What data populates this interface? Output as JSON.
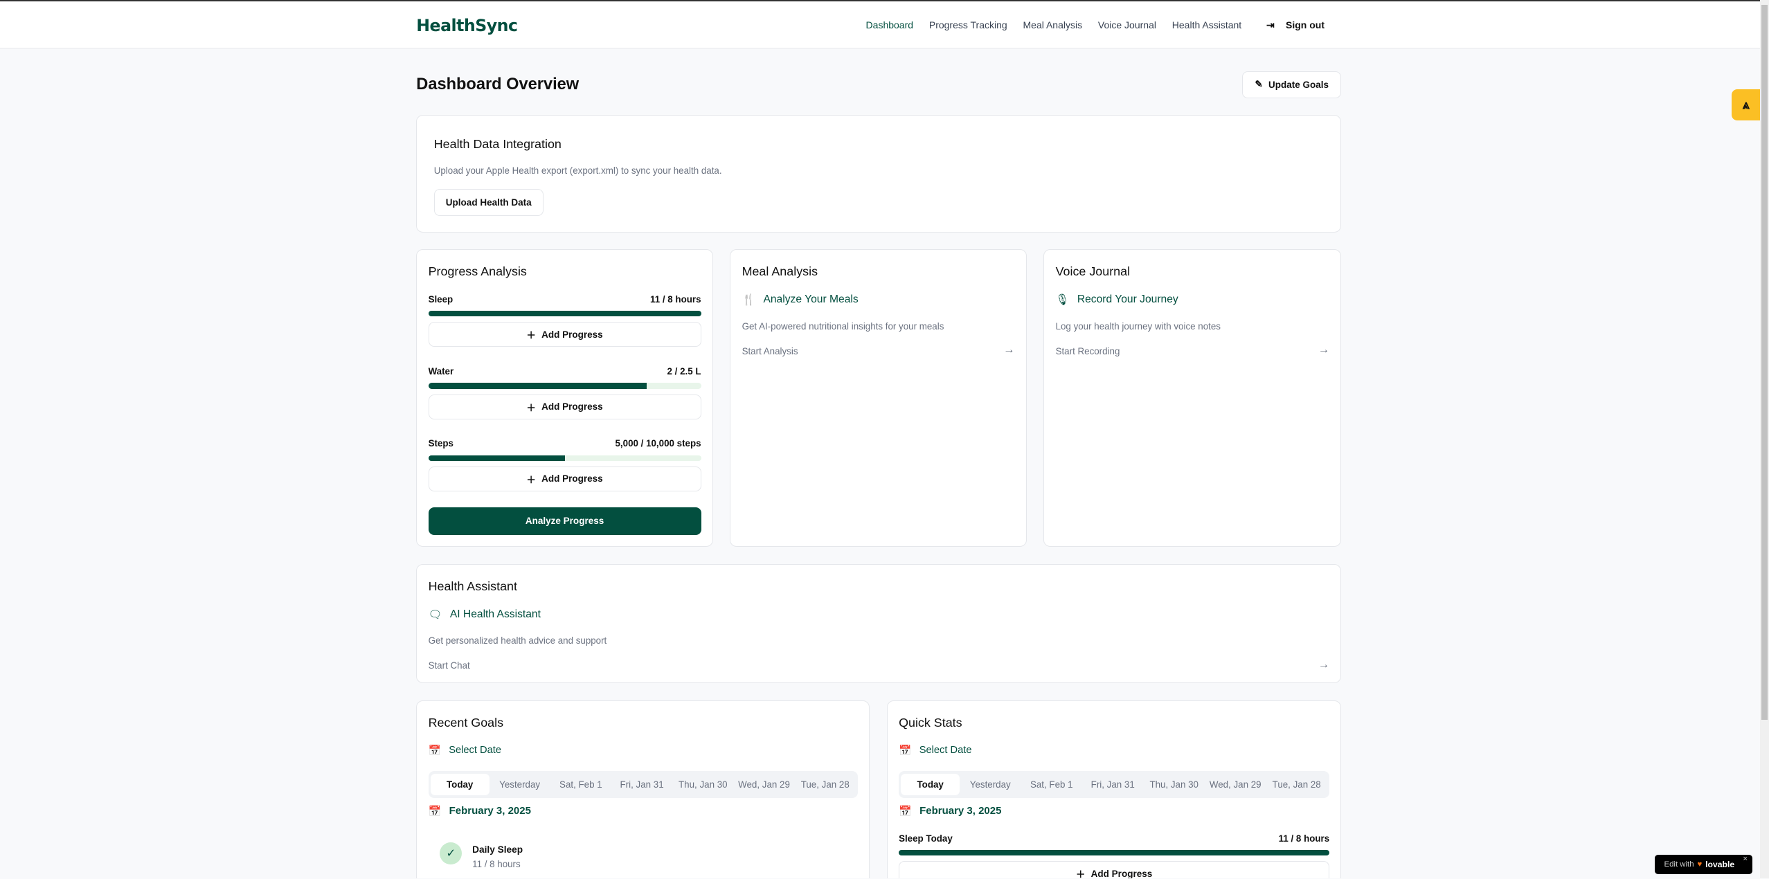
{
  "header": {
    "logo": "HealthSync",
    "nav": [
      "Dashboard",
      "Progress Tracking",
      "Meal Analysis",
      "Voice Journal",
      "Health Assistant"
    ],
    "active": "Dashboard",
    "signout": "Sign out"
  },
  "page": {
    "title": "Dashboard Overview",
    "update_goals": "Update Goals"
  },
  "integration": {
    "title": "Health Data Integration",
    "desc": "Upload your Apple Health export (export.xml) to sync your health data.",
    "button": "Upload Health Data"
  },
  "progress": {
    "title": "Progress Analysis",
    "items": [
      {
        "label": "Sleep",
        "value": "11 / 8 hours",
        "percent": 100
      },
      {
        "label": "Water",
        "value": "2 / 2.5 L",
        "percent": 80
      },
      {
        "label": "Steps",
        "value": "5,000 / 10,000 steps",
        "percent": 50
      }
    ],
    "add": "Add Progress",
    "analyze": "Analyze Progress"
  },
  "meal": {
    "title": "Meal Analysis",
    "sub": "Analyze Your Meals",
    "desc": "Get AI-powered nutritional insights for your meals",
    "action": "Start Analysis"
  },
  "voice": {
    "title": "Voice Journal",
    "sub": "Record Your Journey",
    "desc": "Log your health journey with voice notes",
    "action": "Start Recording"
  },
  "assistant": {
    "title": "Health Assistant",
    "sub": "AI Health Assistant",
    "desc": "Get personalized health advice and support",
    "action": "Start Chat"
  },
  "dates": [
    "Today",
    "Yesterday",
    "Sat, Feb 1",
    "Fri, Jan 31",
    "Thu, Jan 30",
    "Wed, Jan 29",
    "Tue, Jan 28"
  ],
  "recent": {
    "title": "Recent Goals",
    "select": "Select Date",
    "date": "February 3, 2025",
    "goal": "Daily Sleep",
    "goal_value": "11 / 8 hours"
  },
  "quick": {
    "title": "Quick Stats",
    "select": "Select Date",
    "date": "February 3, 2025",
    "label": "Sleep Today",
    "value": "11 / 8 hours",
    "percent": 100,
    "add": "Add Progress"
  },
  "badge": {
    "text": "Edit with",
    "brand": "lovable"
  },
  "colors": {
    "accent": "#034f3f",
    "track": "#e8f5ea",
    "tab": "#fbbf24"
  }
}
